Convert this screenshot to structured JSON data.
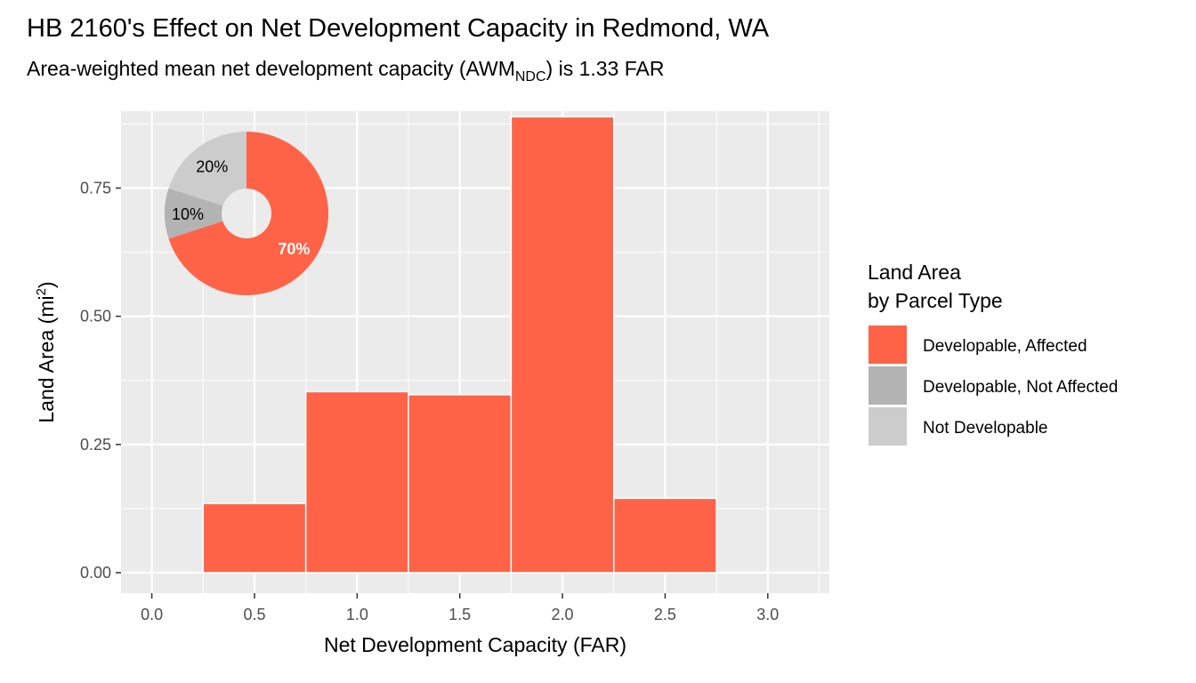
{
  "chart_data": {
    "type": "bar",
    "title": "HB 2160's Effect on Net Development Capacity in Redmond, WA",
    "subtitle": {
      "prefix": "Area-weighted mean net development capacity (AWM",
      "subscript": "NDC",
      "suffix": ") is 1.33 FAR"
    },
    "xlabel": "Net Development Capacity (FAR)",
    "ylabel": {
      "prefix": "Land Area (mi",
      "superscript": "2",
      "suffix": ")"
    },
    "xlim": [
      -0.15,
      3.3
    ],
    "ylim": [
      -0.04,
      0.9
    ],
    "x_ticks": [
      "0.0",
      "0.5",
      "1.0",
      "1.5",
      "2.0",
      "2.5",
      "3.0"
    ],
    "y_ticks": [
      "0.00",
      "0.25",
      "0.50",
      "0.75"
    ],
    "grid": true,
    "bin_width": 0.5,
    "bars": [
      {
        "center": 0.5,
        "value": 0.135,
        "series": "Developable, Affected"
      },
      {
        "center": 1.0,
        "value": 0.353,
        "series": "Developable, Affected"
      },
      {
        "center": 1.5,
        "value": 0.347,
        "series": "Developable, Affected"
      },
      {
        "center": 2.0,
        "value": 0.889,
        "series": "Developable, Affected"
      },
      {
        "center": 2.5,
        "value": 0.145,
        "series": "Developable, Affected"
      }
    ],
    "legend": {
      "title": [
        "Land Area",
        "by Parcel Type"
      ],
      "placement": "right",
      "items": [
        {
          "label": "Developable, Affected",
          "color": "#FF6347"
        },
        {
          "label": "Developable, Not Affected",
          "color": "#B3B3B3"
        },
        {
          "label": "Not Developable",
          "color": "#CCCCCC"
        }
      ]
    },
    "inset_pie": {
      "type": "pie",
      "placement": "top-left",
      "donut": true,
      "slices": [
        {
          "series": "Developable, Affected",
          "value": 70,
          "label": "70%",
          "color": "#FF6347",
          "label_color": "#FFFFFF",
          "bold": true
        },
        {
          "series": "Developable, Not Affected",
          "value": 10,
          "label": "10%",
          "color": "#B3B3B3",
          "label_color": "#000000",
          "bold": false
        },
        {
          "series": "Not Developable",
          "value": 20,
          "label": "20%",
          "color": "#CCCCCC",
          "label_color": "#000000",
          "bold": false
        }
      ]
    },
    "colors": {
      "panel": "#EBEBEB",
      "grid_major": "#FFFFFF",
      "bar_outline": "#FFFFFF"
    }
  }
}
